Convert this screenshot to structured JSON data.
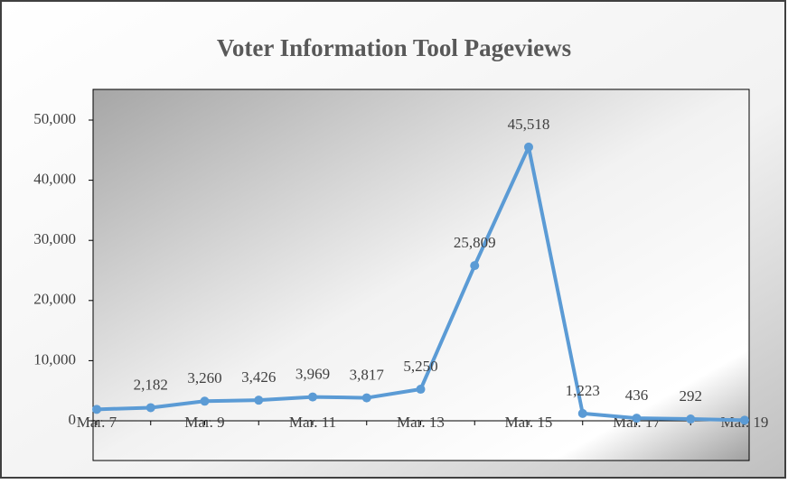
{
  "chart_data": {
    "type": "line",
    "title": "Voter Information Tool Pageviews",
    "categories": [
      "Mar. 7",
      null,
      "Mar. 9",
      null,
      "Mar. 11",
      null,
      "Mar. 13",
      null,
      "Mar. 15",
      null,
      "Mar. 17",
      null,
      "Mar. 19"
    ],
    "series": [
      {
        "name": "Pageviews",
        "color": "#5b9bd5",
        "values": [
          1900,
          2182,
          3260,
          3426,
          3969,
          3817,
          5250,
          25809,
          45518,
          1223,
          436,
          292,
          100
        ],
        "value_labels": [
          null,
          "2,182",
          "3,260",
          "3,426",
          "3,969",
          "3,817",
          "5,250",
          "25,809",
          "45,518",
          "1,223",
          "436",
          "292",
          null
        ]
      }
    ],
    "ylim": [
      0,
      50000
    ],
    "yticks": [
      0,
      {
        "value": 10000,
        "label": "10,000"
      },
      {
        "value": 20000,
        "label": "20,000"
      },
      {
        "value": 30000,
        "label": "30,000"
      },
      {
        "value": 40000,
        "label": "40,000"
      },
      {
        "value": 50000,
        "label": "50,000"
      }
    ]
  }
}
